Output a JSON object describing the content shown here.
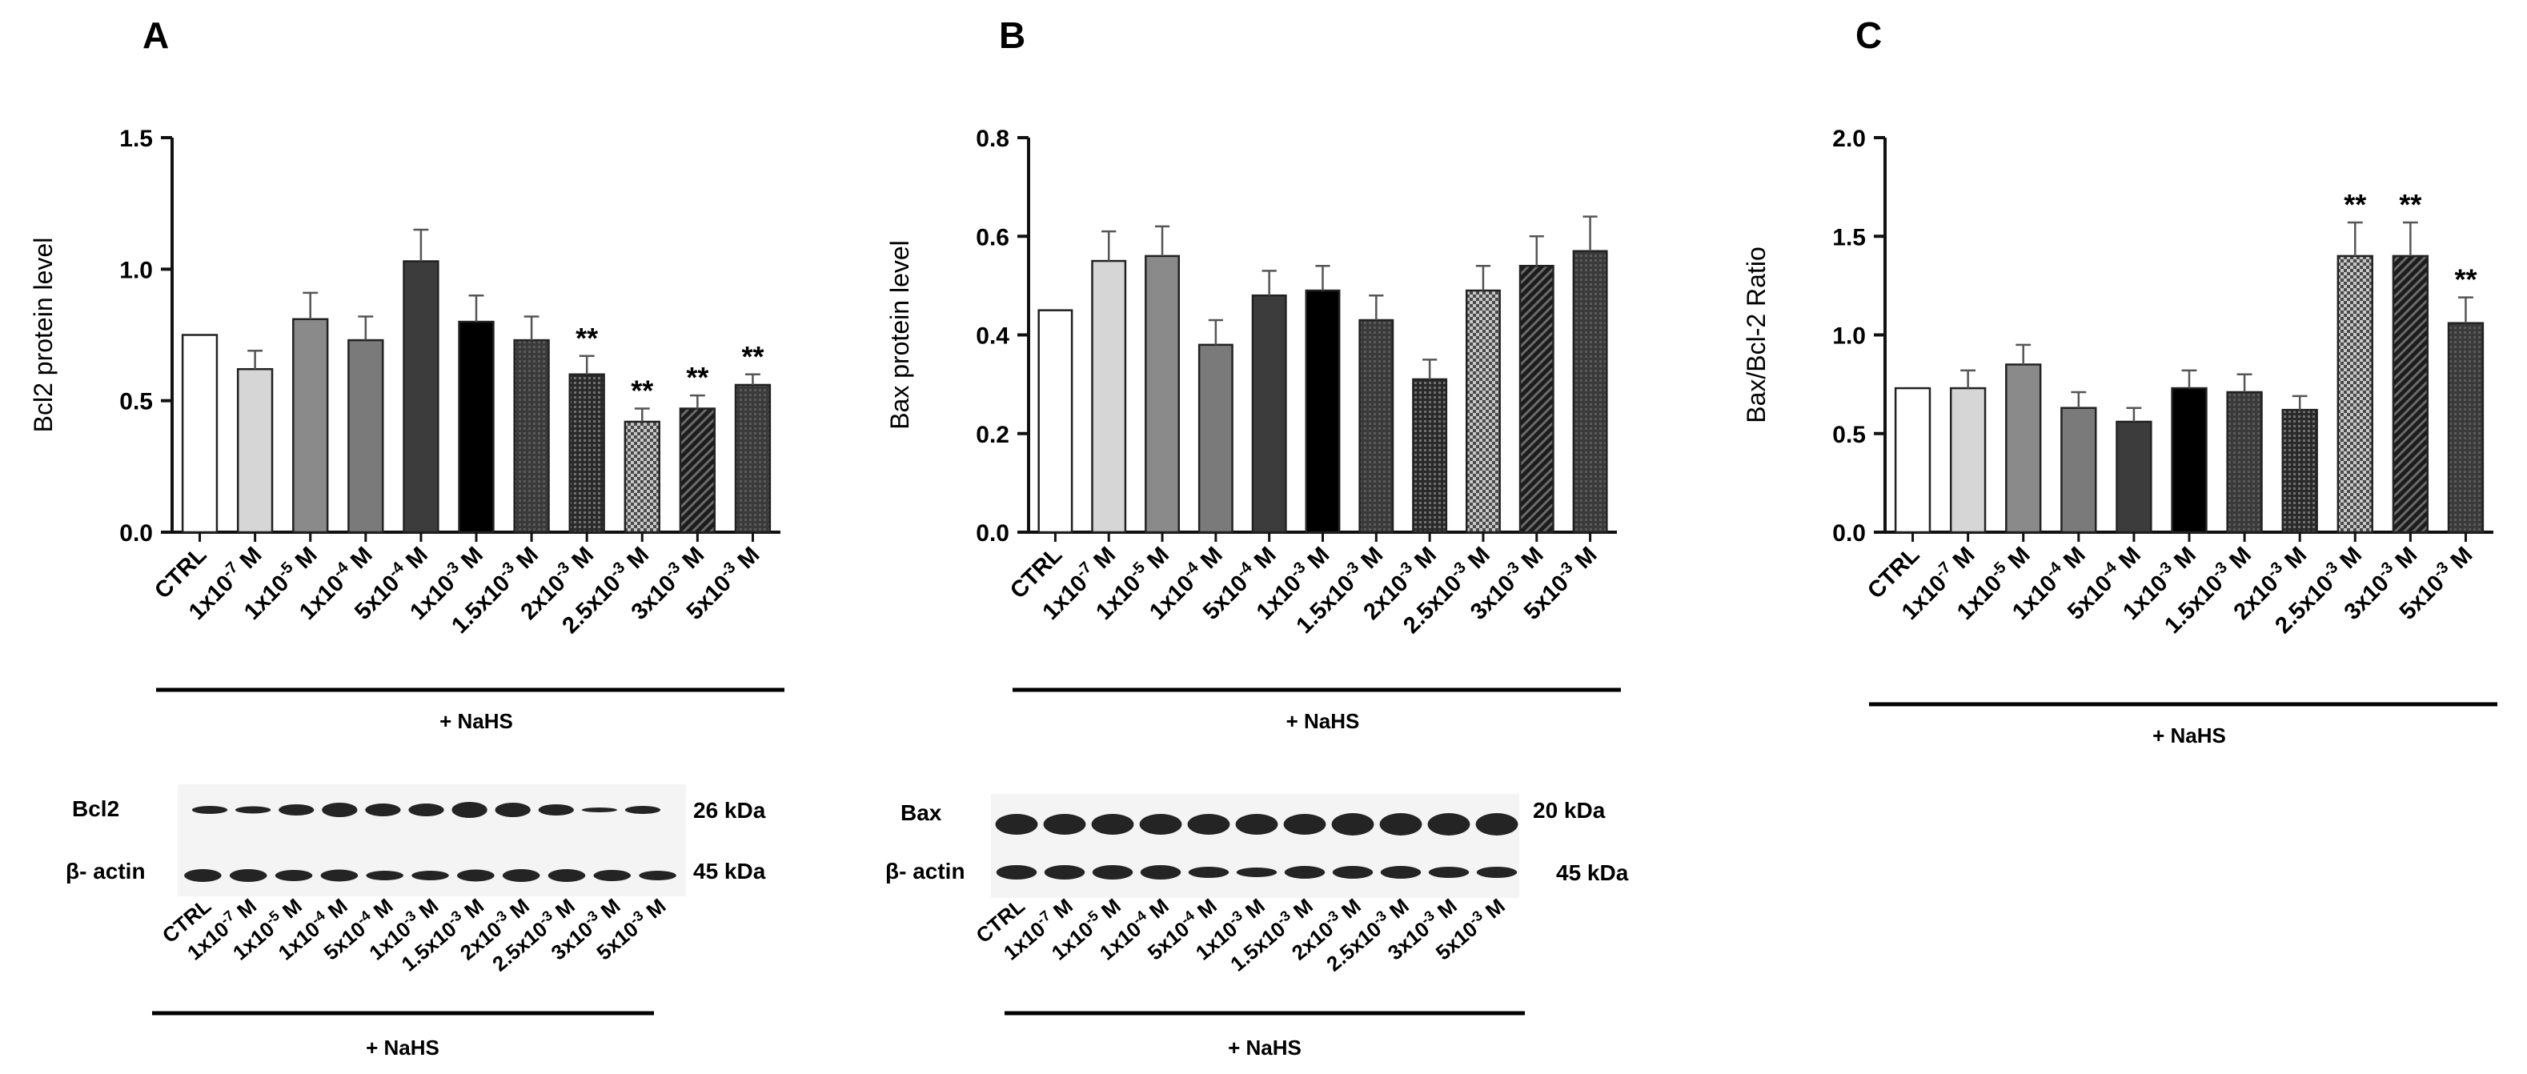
{
  "categories": [
    "CTRL",
    "1x10-7 M",
    "1x10-5 M",
    "1x10-4 M",
    "5x10-4 M",
    "1x10-3 M",
    "1.5x10-3 M",
    "2x10-3 M",
    "2.5x10-3 M",
    "3x10-3 M",
    "5x10-3 M"
  ],
  "treatment_label": "+ NaHS",
  "blot_a": {
    "target": "Bcl2",
    "target_kda": "26 kDa",
    "control": "β- actin",
    "control_kda": "45 kDa"
  },
  "blot_b": {
    "target": "Bax",
    "target_kda": "20 kDa",
    "control": "β- actin",
    "control_kda": "45 kDa"
  },
  "colors": {
    "bar_light": "#d6d6d6",
    "bar_mid": "#8a8a8a",
    "bar_dark": "#3c3c3c",
    "bar_black": "#000000"
  },
  "chart_data": [
    {
      "panel": "A",
      "type": "bar",
      "title": "",
      "xlabel": "",
      "ylabel": "Bcl2 protein level",
      "ylim": [
        0,
        1.5
      ],
      "yticks": [
        "0.0",
        "0.5",
        "1.0",
        "1.5"
      ],
      "values": [
        0.75,
        0.62,
        0.81,
        0.73,
        1.03,
        0.8,
        0.73,
        0.6,
        0.42,
        0.47,
        0.56
      ],
      "errors": [
        0.0,
        0.07,
        0.1,
        0.09,
        0.12,
        0.1,
        0.09,
        0.07,
        0.05,
        0.05,
        0.04
      ],
      "significance": [
        "",
        "",
        "",
        "",
        "",
        "",
        "",
        "**",
        "**",
        "**",
        "**"
      ]
    },
    {
      "panel": "B",
      "type": "bar",
      "title": "",
      "xlabel": "",
      "ylabel": "Bax protein level",
      "ylim": [
        0,
        0.8
      ],
      "yticks": [
        "0.0",
        "0.2",
        "0.4",
        "0.6",
        "0.8"
      ],
      "values": [
        0.45,
        0.55,
        0.56,
        0.38,
        0.48,
        0.49,
        0.43,
        0.31,
        0.49,
        0.54,
        0.57
      ],
      "errors": [
        0.0,
        0.06,
        0.06,
        0.05,
        0.05,
        0.05,
        0.05,
        0.04,
        0.05,
        0.06,
        0.07
      ],
      "significance": [
        "",
        "",
        "",
        "",
        "",
        "",
        "",
        "",
        "",
        "",
        ""
      ]
    },
    {
      "panel": "C",
      "type": "bar",
      "title": "",
      "xlabel": "",
      "ylabel": "Bax/Bcl-2 Ratio",
      "ylim": [
        0,
        2.0
      ],
      "yticks": [
        "0.0",
        "0.5",
        "1.0",
        "1.5",
        "2.0"
      ],
      "values": [
        0.73,
        0.73,
        0.85,
        0.63,
        0.56,
        0.73,
        0.71,
        0.62,
        1.4,
        1.4,
        1.06
      ],
      "errors": [
        0.0,
        0.09,
        0.1,
        0.08,
        0.07,
        0.09,
        0.09,
        0.07,
        0.17,
        0.17,
        0.13
      ],
      "significance": [
        "",
        "",
        "",
        "",
        "",
        "",
        "",
        "",
        "**",
        "**",
        "**"
      ]
    }
  ]
}
